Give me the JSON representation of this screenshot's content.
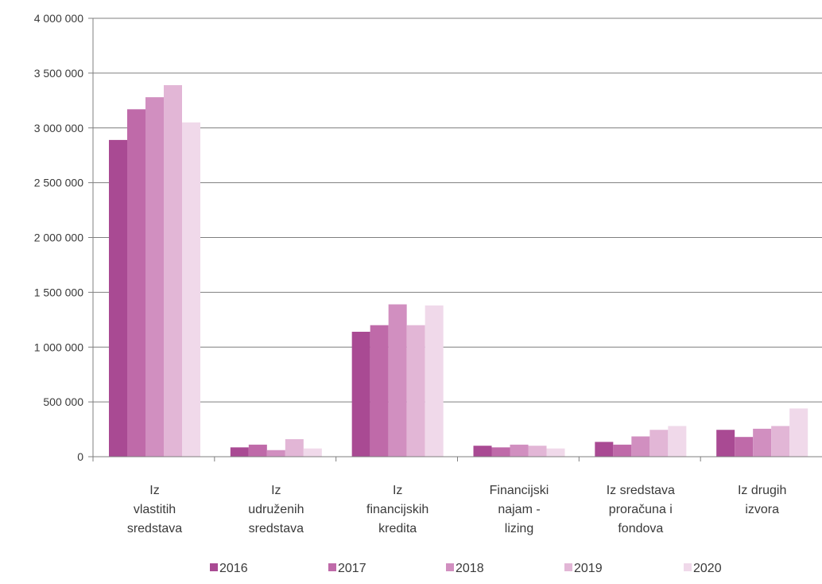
{
  "chart_data": {
    "type": "bar",
    "title": "",
    "xlabel": "",
    "ylabel": "",
    "ylim": [
      0,
      4000000
    ],
    "yticks": [
      0,
      500000,
      1000000,
      1500000,
      2000000,
      2500000,
      3000000,
      3500000,
      4000000
    ],
    "ytick_labels": [
      "0",
      "500 000",
      "1 000 000",
      "1 500 000",
      "2 000 000",
      "2 500 000",
      "3 000 000",
      "3 500 000",
      "4 000 000"
    ],
    "grid": "horizontal",
    "legend_position": "bottom",
    "categories": [
      [
        "Iz",
        "vlastitih",
        "sredstava"
      ],
      [
        "Iz",
        "udruženih",
        "sredstava"
      ],
      [
        "Iz",
        "financijskih",
        "kredita"
      ],
      [
        "Financijski",
        "najam -",
        "lizing"
      ],
      [
        "Iz sredstava",
        "proračuna i",
        "fondova"
      ],
      [
        "Iz drugih",
        "izvora"
      ]
    ],
    "series": [
      {
        "name": "2016",
        "color": "#a94a93",
        "values": [
          2890000,
          85000,
          1140000,
          100000,
          135000,
          245000
        ]
      },
      {
        "name": "2017",
        "color": "#bf6aa9",
        "values": [
          3170000,
          110000,
          1200000,
          85000,
          110000,
          180000
        ]
      },
      {
        "name": "2018",
        "color": "#d18fc0",
        "values": [
          3280000,
          60000,
          1390000,
          110000,
          185000,
          255000
        ]
      },
      {
        "name": "2019",
        "color": "#e2b6d6",
        "values": [
          3390000,
          160000,
          1200000,
          100000,
          245000,
          280000
        ]
      },
      {
        "name": "2020",
        "color": "#f0d9ea",
        "values": [
          3050000,
          75000,
          1380000,
          75000,
          280000,
          440000
        ]
      }
    ]
  }
}
